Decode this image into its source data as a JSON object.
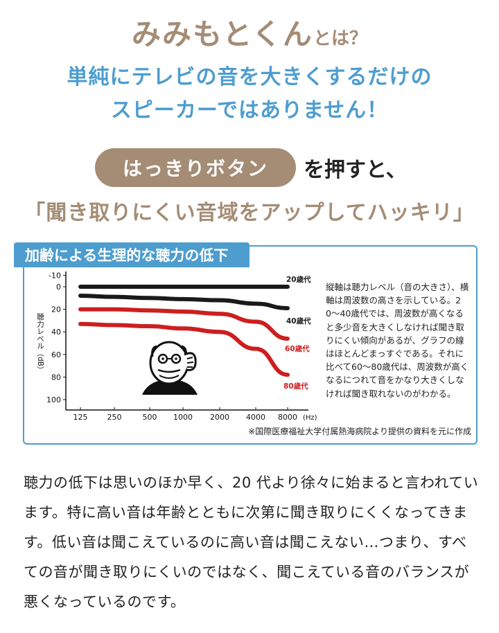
{
  "header": {
    "title_main": "みみもとくん",
    "title_suffix": "とは？",
    "subtitle_line1": "単純にテレビの音を大きくするだけの",
    "subtitle_line2": "スピーカーではありません！"
  },
  "button_row": {
    "pill_label": "はっきりボタン",
    "suffix": "を押すと、"
  },
  "tagline": "「聞き取りにくい音域をアップしてハッキリ」",
  "chart_panel": {
    "tab_title": "加齢による生理的な聴力の低下",
    "note": "縦軸は聴力レベル（音の大きさ）、横軸は周波数の高さを示している。20〜40歳代では、周波数が高くなると多少音を大きくしなければ聞き取りにくい傾向があるが、グラフの線はほとんどまっすぐである。それに比べて60〜80歳代は、周波数が高くなるにつれて音をかなり大きくしなければ聞き取れないのがわかる。",
    "source": "※国際医療福祉大学付属熱海病院より提供の資料を元に作成"
  },
  "chart_data": {
    "type": "line",
    "ylabel": "聴力レベル（dB）",
    "x_unit": "(Hz)",
    "x": [
      "125",
      "250",
      "500",
      "1000",
      "2000",
      "4000",
      "8000"
    ],
    "y_ticks": [
      "-10",
      "0",
      "20",
      "40",
      "60",
      "80",
      "100"
    ],
    "ylim": [
      -10,
      100
    ],
    "y_inverted": true,
    "grid": false,
    "series": [
      {
        "name": "20歳代",
        "color": "#1a1a1a",
        "values": [
          0,
          0,
          0,
          0,
          0,
          0,
          0
        ]
      },
      {
        "name": "40歳代",
        "color": "#1a1a1a",
        "values": [
          8,
          9,
          10,
          11,
          12,
          15,
          19
        ]
      },
      {
        "name": "60歳代",
        "color": "#cc1f1f",
        "values": [
          20,
          20,
          21,
          22,
          24,
          31,
          46
        ]
      },
      {
        "name": "80歳代",
        "color": "#cc1f1f",
        "values": [
          33,
          34,
          35,
          37,
          40,
          55,
          78
        ]
      }
    ]
  },
  "illustration": {
    "icon": "elderly-man-cupping-ear-icon"
  },
  "body_text": "聴力の低下は思いのほか早く、20 代より徐々に始まると言われています。特に高い音は年齢とともに次第に聞き取りにくくなってきます。低い音は聞こえているのに高い音は聞こえない…つまり、すべての音が聞き取りにくいのではなく、聞こえている音のバランスが悪くなっているのです。"
}
